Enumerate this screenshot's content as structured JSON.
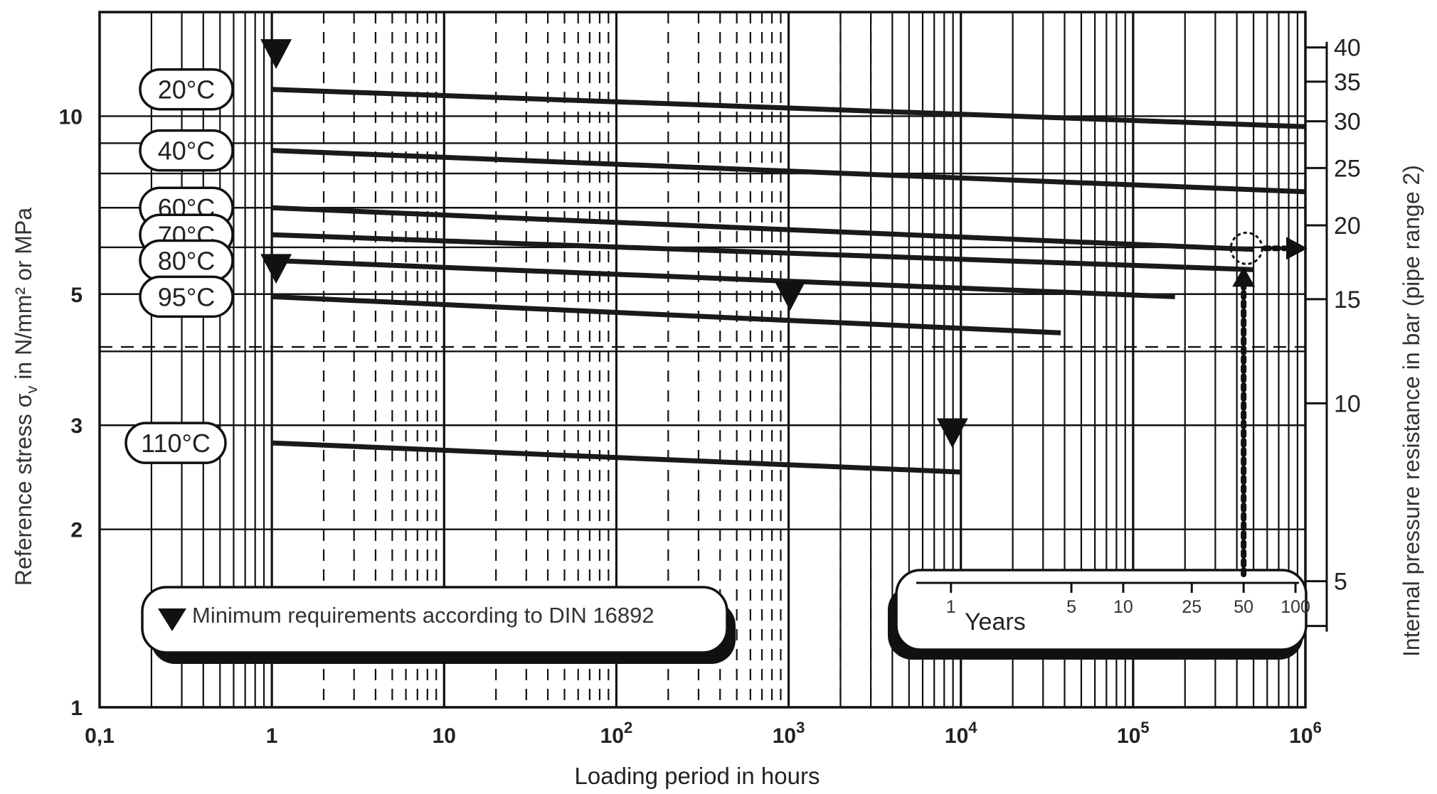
{
  "chart_data": {
    "type": "line",
    "title": "",
    "xlabel": "Loading period in hours",
    "ylabel": "Reference stress σ",
    "ylabel_sub": "v",
    "ylabel_rest": " in N/mm² or MPa",
    "y2label": "Internal pressure resistance in bar  (pipe range 2)",
    "x_scale": "log",
    "y_scale": "log",
    "xlim": [
      0.1,
      1000000
    ],
    "ylim": [
      1,
      15
    ],
    "grid": true,
    "x_ticks": [
      {
        "value": 0.1,
        "base": "0,1",
        "exp": ""
      },
      {
        "value": 1,
        "base": "1",
        "exp": ""
      },
      {
        "value": 10,
        "base": "10",
        "exp": ""
      },
      {
        "value": 100,
        "base": "10",
        "exp": "2"
      },
      {
        "value": 1000,
        "base": "10",
        "exp": "3"
      },
      {
        "value": 10000,
        "base": "10",
        "exp": "4"
      },
      {
        "value": 100000,
        "base": "10",
        "exp": "5"
      },
      {
        "value": 1000000,
        "base": "10",
        "exp": "6"
      }
    ],
    "y_ticks": [
      {
        "value": 1,
        "label": "1"
      },
      {
        "value": 2,
        "label": "2"
      },
      {
        "value": 3,
        "label": "3"
      },
      {
        "value": 5,
        "label": "5"
      },
      {
        "value": 10,
        "label": "10"
      }
    ],
    "y2_ticks": [
      {
        "value": 40,
        "label": "40"
      },
      {
        "value": 35,
        "label": "35"
      },
      {
        "value": 30,
        "label": "30"
      },
      {
        "value": 25,
        "label": "25"
      },
      {
        "value": 20,
        "label": "20"
      },
      {
        "value": 15,
        "label": "15"
      },
      {
        "value": 10,
        "label": "10"
      },
      {
        "value": 5,
        "label": "5"
      }
    ],
    "y2_minor_ticks": [
      4.2
    ],
    "y2_per_stress": 3.06,
    "hgrid_stress": [
      1,
      2,
      3,
      4,
      5,
      6,
      7,
      8,
      9,
      10
    ],
    "dashed_ref_stress": 4.07,
    "series": [
      {
        "name": "20°C",
        "x": [
          1,
          1000000
        ],
        "y": [
          11.1,
          9.6
        ]
      },
      {
        "name": "40°C",
        "x": [
          1,
          1000000
        ],
        "y": [
          8.75,
          7.45
        ]
      },
      {
        "name": "60°C",
        "x": [
          1,
          500000
        ],
        "y": [
          7.0,
          5.95
        ]
      },
      {
        "name": "70°C",
        "x": [
          1,
          500000
        ],
        "y": [
          6.3,
          5.5
        ]
      },
      {
        "name": "80°C",
        "x": [
          1,
          175000
        ],
        "y": [
          5.7,
          4.95
        ]
      },
      {
        "name": "95°C",
        "x": [
          1,
          38000
        ],
        "y": [
          4.95,
          4.3
        ]
      },
      {
        "name": "110°C",
        "x": [
          1,
          10000
        ],
        "y": [
          2.8,
          2.5
        ]
      }
    ],
    "min_requirements": [
      {
        "x": 1,
        "y": 12.7
      },
      {
        "x": 1,
        "y": 5.5
      },
      {
        "x": 1000,
        "y": 4.95
      },
      {
        "x": 8760,
        "y": 2.9
      }
    ],
    "legend": {
      "marker": "▼",
      "text": "Minimum requirements according to DIN 16892"
    },
    "years_scale": {
      "label": "Years",
      "ticks": [
        {
          "years": 1,
          "label": "1"
        },
        {
          "years": 5,
          "label": "5"
        },
        {
          "years": 10,
          "label": "10"
        },
        {
          "years": 25,
          "label": "25"
        },
        {
          "years": 50,
          "label": "50"
        },
        {
          "years": 100,
          "label": "100"
        }
      ]
    },
    "annotation": {
      "x": 438000,
      "y": 5.5
    }
  }
}
